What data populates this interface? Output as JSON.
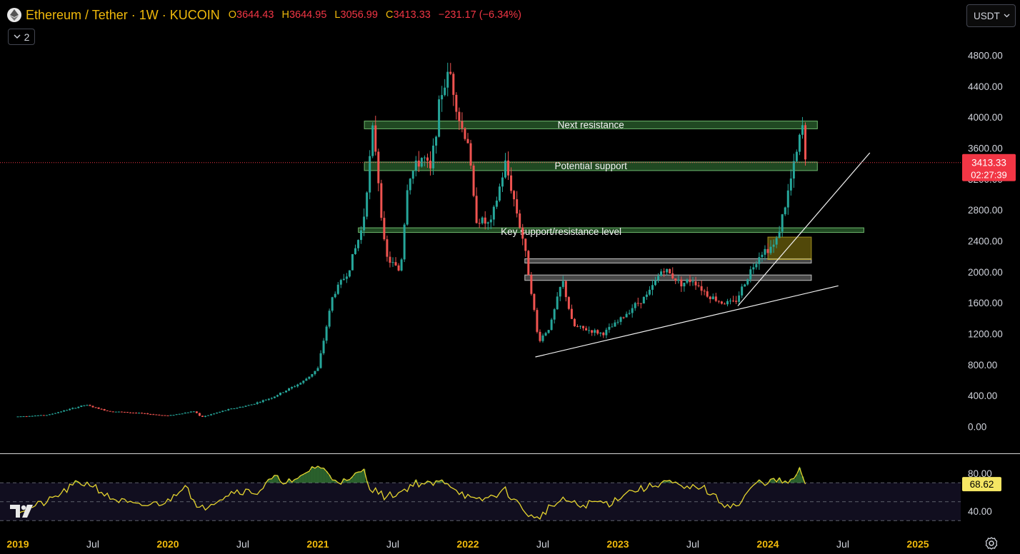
{
  "header": {
    "symbol": "Ethereum / Tether · 1W · KUCOIN",
    "o_label": "O",
    "o_value": "3644.43",
    "h_label": "H",
    "h_value": "3644.95",
    "l_label": "L",
    "l_value": "3056.99",
    "c_label": "C",
    "c_value": "3413.33",
    "change": "−231.17 (−6.34%)"
  },
  "indicators_toggle": {
    "count": "2"
  },
  "currency_selector": {
    "value": "USDT"
  },
  "colors": {
    "up": "#26a69a",
    "down": "#ef5350",
    "text_yellow": "#f0b90b",
    "rsi": "#e6d52f",
    "price_label": "#f23645"
  },
  "chart_data": [
    {
      "type": "candlestick",
      "title": "Ethereum / Tether · 1W · KUCOIN",
      "x_ticks": [
        "2019",
        "Jul",
        "2020",
        "Jul",
        "2021",
        "Jul",
        "2022",
        "Jul",
        "2023",
        "Jul",
        "2024",
        "Jul",
        "2025"
      ],
      "x_tick_years": [
        2019.0,
        2019.5,
        2020.0,
        2020.5,
        2021.0,
        2021.5,
        2022.0,
        2022.5,
        2023.0,
        2023.5,
        2024.0,
        2024.5,
        2025.0
      ],
      "y_ticks": [
        "4800.00",
        "4400.00",
        "4000.00",
        "3600.00",
        "3200.00",
        "2800.00",
        "2400.00",
        "2000.00",
        "1600.00",
        "1200.00",
        "800.00",
        "400.00",
        "0.00"
      ],
      "ylim": [
        0,
        4800
      ],
      "last_price": "3413.33",
      "countdown": "02:27:39",
      "price_anchors": [
        [
          2019.0,
          130
        ],
        [
          2019.2,
          150
        ],
        [
          2019.45,
          280
        ],
        [
          2019.6,
          200
        ],
        [
          2019.8,
          175
        ],
        [
          2020.0,
          140
        ],
        [
          2020.18,
          200
        ],
        [
          2020.22,
          120
        ],
        [
          2020.4,
          220
        ],
        [
          2020.55,
          280
        ],
        [
          2020.7,
          380
        ],
        [
          2020.9,
          580
        ],
        [
          2021.0,
          750
        ],
        [
          2021.1,
          1700
        ],
        [
          2021.2,
          2000
        ],
        [
          2021.3,
          2600
        ],
        [
          2021.37,
          3900
        ],
        [
          2021.45,
          2200
        ],
        [
          2021.55,
          2000
        ],
        [
          2021.6,
          3200
        ],
        [
          2021.7,
          3500
        ],
        [
          2021.75,
          3300
        ],
        [
          2021.82,
          4300
        ],
        [
          2021.88,
          4600
        ],
        [
          2021.95,
          3900
        ],
        [
          2022.0,
          3700
        ],
        [
          2022.05,
          2700
        ],
        [
          2022.15,
          2600
        ],
        [
          2022.25,
          3400
        ],
        [
          2022.3,
          3000
        ],
        [
          2022.37,
          2400
        ],
        [
          2022.42,
          1800
        ],
        [
          2022.47,
          1100
        ],
        [
          2022.55,
          1300
        ],
        [
          2022.63,
          1900
        ],
        [
          2022.7,
          1300
        ],
        [
          2022.8,
          1250
        ],
        [
          2022.9,
          1200
        ],
        [
          2023.0,
          1350
        ],
        [
          2023.1,
          1550
        ],
        [
          2023.2,
          1700
        ],
        [
          2023.3,
          2050
        ],
        [
          2023.42,
          1850
        ],
        [
          2023.5,
          1900
        ],
        [
          2023.6,
          1700
        ],
        [
          2023.7,
          1600
        ],
        [
          2023.78,
          1600
        ],
        [
          2023.88,
          2000
        ],
        [
          2023.95,
          2250
        ],
        [
          2024.05,
          2350
        ],
        [
          2024.12,
          2900
        ],
        [
          2024.2,
          3600
        ],
        [
          2024.23,
          3900
        ],
        [
          2024.25,
          3413
        ]
      ],
      "zones": [
        {
          "label": "Next resistance",
          "low": 3850,
          "high": 3950,
          "x_start": 2021.31,
          "x_end": 2024.33
        },
        {
          "label": "Potential support",
          "low": 3310,
          "high": 3420,
          "x_start": 2021.31,
          "x_end": 2024.33
        },
        {
          "label": "Key support/resistance level",
          "low": 2510,
          "high": 2570,
          "x_start": 2021.27,
          "x_end": 2024.64
        },
        {
          "label": "",
          "low": 2120,
          "high": 2170,
          "x_start": 2022.38,
          "x_end": 2024.29
        },
        {
          "label": "",
          "low": 1890,
          "high": 1960,
          "x_start": 2022.38,
          "x_end": 2024.29
        }
      ],
      "accumulation_box": {
        "low": 2160,
        "high": 2450,
        "x_start": 2024.0,
        "x_end": 2024.29
      },
      "trendlines": [
        {
          "x1": 2022.45,
          "y1": 900,
          "x2": 2024.47,
          "y2": 1820
        },
        {
          "x1": 2023.8,
          "y1": 1560,
          "x2": 2024.68,
          "y2": 3540
        }
      ]
    },
    {
      "type": "line",
      "title": "",
      "y_ticks": [
        "80.00",
        "40.00"
      ],
      "ylim": [
        20,
        90
      ],
      "last_value": "68.62",
      "bands": [
        70,
        50,
        30
      ],
      "rsi_anchors": [
        [
          2019.0,
          40
        ],
        [
          2019.2,
          50
        ],
        [
          2019.4,
          70
        ],
        [
          2019.5,
          68
        ],
        [
          2019.6,
          55
        ],
        [
          2019.8,
          45
        ],
        [
          2020.0,
          50
        ],
        [
          2020.12,
          70
        ],
        [
          2020.2,
          40
        ],
        [
          2020.3,
          50
        ],
        [
          2020.45,
          62
        ],
        [
          2020.6,
          60
        ],
        [
          2020.7,
          75
        ],
        [
          2020.85,
          70
        ],
        [
          2020.95,
          85
        ],
        [
          2021.0,
          88
        ],
        [
          2021.05,
          82
        ],
        [
          2021.1,
          75
        ],
        [
          2021.2,
          70
        ],
        [
          2021.3,
          85
        ],
        [
          2021.35,
          65
        ],
        [
          2021.45,
          55
        ],
        [
          2021.55,
          60
        ],
        [
          2021.65,
          70
        ],
        [
          2021.75,
          68
        ],
        [
          2021.85,
          72
        ],
        [
          2021.95,
          60
        ],
        [
          2022.05,
          50
        ],
        [
          2022.15,
          55
        ],
        [
          2022.25,
          62
        ],
        [
          2022.35,
          45
        ],
        [
          2022.45,
          30
        ],
        [
          2022.55,
          45
        ],
        [
          2022.65,
          52
        ],
        [
          2022.75,
          45
        ],
        [
          2022.85,
          50
        ],
        [
          2022.95,
          48
        ],
        [
          2023.05,
          60
        ],
        [
          2023.2,
          65
        ],
        [
          2023.32,
          72
        ],
        [
          2023.45,
          63
        ],
        [
          2023.55,
          67
        ],
        [
          2023.7,
          48
        ],
        [
          2023.8,
          45
        ],
        [
          2023.92,
          70
        ],
        [
          2024.05,
          72
        ],
        [
          2024.15,
          70
        ],
        [
          2024.22,
          84
        ],
        [
          2024.25,
          68.62
        ]
      ]
    }
  ]
}
